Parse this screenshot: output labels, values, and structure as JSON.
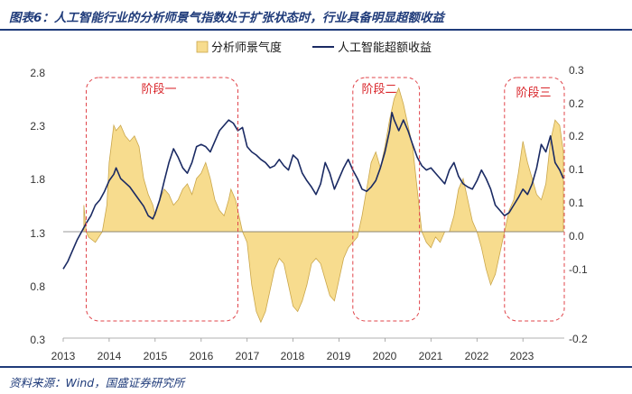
{
  "title": "图表6：人工智能行业的分析师景气指数处于扩张状态时，行业具备明显超额收益",
  "source": "资料来源：Wind，国盛证券研究所",
  "colors": {
    "bar_fill": "#f7dc8e",
    "bar_stroke": "#caa64a",
    "line": "#1a2a63",
    "phase": "#e0444a"
  },
  "chart_data": {
    "type": "area+line",
    "title": "人工智能行业的分析师景气指数处于扩张状态时，行业具备明显超额收益",
    "x_labels": [
      "2013",
      "2014",
      "2015",
      "2016",
      "2017",
      "2018",
      "2019",
      "2020",
      "2021",
      "2022",
      "2023"
    ],
    "x_range": [
      2013.0,
      2023.9
    ],
    "left_axis": {
      "name": "人工智能超额收益",
      "ylim": [
        0.3,
        2.8
      ],
      "ticks": [
        "0.3",
        "0.8",
        "1.3",
        "1.8",
        "2.3",
        "2.8"
      ]
    },
    "right_axis": {
      "name": "分析师景气度",
      "ylim": [
        -0.2,
        0.3
      ],
      "ticks": [
        "-0.2",
        "-0.1",
        "0.0",
        "0.1",
        "0.1",
        "0.2",
        "0.2",
        "0.3"
      ]
    },
    "legend": [
      "分析师景气度",
      "人工智能超额收益"
    ],
    "series": [
      {
        "name": "分析师景气度",
        "axis": "right",
        "kind": "area",
        "points": [
          [
            2013.45,
            0.05
          ],
          [
            2013.5,
            0.0
          ],
          [
            2013.55,
            -0.01
          ],
          [
            2013.7,
            -0.02
          ],
          [
            2013.85,
            0.0
          ],
          [
            2013.95,
            0.05
          ],
          [
            2014.0,
            0.13
          ],
          [
            2014.1,
            0.2
          ],
          [
            2014.15,
            0.19
          ],
          [
            2014.25,
            0.2
          ],
          [
            2014.35,
            0.18
          ],
          [
            2014.45,
            0.17
          ],
          [
            2014.55,
            0.18
          ],
          [
            2014.65,
            0.16
          ],
          [
            2014.75,
            0.1
          ],
          [
            2014.85,
            0.07
          ],
          [
            2014.95,
            0.05
          ],
          [
            2015.0,
            0.03
          ],
          [
            2015.1,
            0.06
          ],
          [
            2015.2,
            0.08
          ],
          [
            2015.3,
            0.07
          ],
          [
            2015.4,
            0.05
          ],
          [
            2015.5,
            0.06
          ],
          [
            2015.6,
            0.08
          ],
          [
            2015.7,
            0.09
          ],
          [
            2015.8,
            0.07
          ],
          [
            2015.9,
            0.1
          ],
          [
            2016.0,
            0.11
          ],
          [
            2016.1,
            0.13
          ],
          [
            2016.2,
            0.1
          ],
          [
            2016.3,
            0.06
          ],
          [
            2016.4,
            0.04
          ],
          [
            2016.5,
            0.03
          ],
          [
            2016.6,
            0.06
          ],
          [
            2016.65,
            0.08
          ],
          [
            2016.75,
            0.06
          ],
          [
            2016.85,
            0.02
          ],
          [
            2016.9,
            0.0
          ],
          [
            2017.0,
            -0.02
          ],
          [
            2017.1,
            -0.1
          ],
          [
            2017.2,
            -0.15
          ],
          [
            2017.3,
            -0.17
          ],
          [
            2017.4,
            -0.15
          ],
          [
            2017.5,
            -0.11
          ],
          [
            2017.6,
            -0.07
          ],
          [
            2017.7,
            -0.05
          ],
          [
            2017.8,
            -0.06
          ],
          [
            2017.9,
            -0.1
          ],
          [
            2018.0,
            -0.14
          ],
          [
            2018.1,
            -0.15
          ],
          [
            2018.2,
            -0.13
          ],
          [
            2018.3,
            -0.1
          ],
          [
            2018.4,
            -0.06
          ],
          [
            2018.5,
            -0.05
          ],
          [
            2018.6,
            -0.06
          ],
          [
            2018.7,
            -0.09
          ],
          [
            2018.8,
            -0.12
          ],
          [
            2018.9,
            -0.13
          ],
          [
            2019.0,
            -0.09
          ],
          [
            2019.1,
            -0.05
          ],
          [
            2019.2,
            -0.03
          ],
          [
            2019.3,
            -0.02
          ],
          [
            2019.4,
            -0.01
          ],
          [
            2019.5,
            0.03
          ],
          [
            2019.6,
            0.08
          ],
          [
            2019.7,
            0.13
          ],
          [
            2019.8,
            0.15
          ],
          [
            2019.9,
            0.12
          ],
          [
            2020.0,
            0.16
          ],
          [
            2020.1,
            0.21
          ],
          [
            2020.2,
            0.25
          ],
          [
            2020.3,
            0.27
          ],
          [
            2020.4,
            0.24
          ],
          [
            2020.5,
            0.2
          ],
          [
            2020.6,
            0.16
          ],
          [
            2020.7,
            0.08
          ],
          [
            2020.75,
            0.04
          ],
          [
            2020.8,
            0.0
          ],
          [
            2020.9,
            -0.02
          ],
          [
            2021.0,
            -0.03
          ],
          [
            2021.1,
            -0.01
          ],
          [
            2021.2,
            -0.02
          ],
          [
            2021.3,
            0.0
          ],
          [
            2021.4,
            0.0
          ],
          [
            2021.5,
            0.03
          ],
          [
            2021.6,
            0.08
          ],
          [
            2021.7,
            0.1
          ],
          [
            2021.8,
            0.06
          ],
          [
            2021.9,
            0.02
          ],
          [
            2022.0,
            0.0
          ],
          [
            2022.1,
            -0.03
          ],
          [
            2022.2,
            -0.07
          ],
          [
            2022.3,
            -0.1
          ],
          [
            2022.4,
            -0.08
          ],
          [
            2022.5,
            -0.04
          ],
          [
            2022.6,
            0.0
          ],
          [
            2022.7,
            0.04
          ],
          [
            2022.8,
            0.06
          ],
          [
            2022.9,
            0.11
          ],
          [
            2023.0,
            0.17
          ],
          [
            2023.1,
            0.13
          ],
          [
            2023.2,
            0.1
          ],
          [
            2023.3,
            0.07
          ],
          [
            2023.4,
            0.06
          ],
          [
            2023.5,
            0.09
          ],
          [
            2023.6,
            0.17
          ],
          [
            2023.7,
            0.21
          ],
          [
            2023.8,
            0.2
          ],
          [
            2023.88,
            0.15
          ]
        ]
      },
      {
        "name": "人工智能超额收益",
        "axis": "left",
        "kind": "line",
        "points": [
          [
            2013.0,
            0.95
          ],
          [
            2013.1,
            1.02
          ],
          [
            2013.2,
            1.12
          ],
          [
            2013.3,
            1.22
          ],
          [
            2013.4,
            1.3
          ],
          [
            2013.5,
            1.38
          ],
          [
            2013.6,
            1.45
          ],
          [
            2013.7,
            1.55
          ],
          [
            2013.8,
            1.6
          ],
          [
            2013.9,
            1.68
          ],
          [
            2014.0,
            1.78
          ],
          [
            2014.1,
            1.84
          ],
          [
            2014.15,
            1.9
          ],
          [
            2014.25,
            1.8
          ],
          [
            2014.35,
            1.76
          ],
          [
            2014.45,
            1.72
          ],
          [
            2014.55,
            1.66
          ],
          [
            2014.65,
            1.6
          ],
          [
            2014.75,
            1.54
          ],
          [
            2014.85,
            1.45
          ],
          [
            2014.95,
            1.42
          ],
          [
            2015.0,
            1.47
          ],
          [
            2015.1,
            1.6
          ],
          [
            2015.2,
            1.78
          ],
          [
            2015.3,
            1.95
          ],
          [
            2015.4,
            2.08
          ],
          [
            2015.5,
            2.0
          ],
          [
            2015.6,
            1.9
          ],
          [
            2015.7,
            1.85
          ],
          [
            2015.8,
            1.95
          ],
          [
            2015.9,
            2.1
          ],
          [
            2016.0,
            2.12
          ],
          [
            2016.1,
            2.1
          ],
          [
            2016.2,
            2.05
          ],
          [
            2016.3,
            2.15
          ],
          [
            2016.4,
            2.25
          ],
          [
            2016.5,
            2.3
          ],
          [
            2016.6,
            2.35
          ],
          [
            2016.7,
            2.32
          ],
          [
            2016.8,
            2.25
          ],
          [
            2016.9,
            2.28
          ],
          [
            2017.0,
            2.1
          ],
          [
            2017.1,
            2.05
          ],
          [
            2017.2,
            2.02
          ],
          [
            2017.3,
            1.98
          ],
          [
            2017.4,
            1.95
          ],
          [
            2017.5,
            1.9
          ],
          [
            2017.6,
            1.92
          ],
          [
            2017.7,
            1.98
          ],
          [
            2017.8,
            1.92
          ],
          [
            2017.9,
            1.88
          ],
          [
            2018.0,
            2.02
          ],
          [
            2018.1,
            1.98
          ],
          [
            2018.2,
            1.85
          ],
          [
            2018.3,
            1.78
          ],
          [
            2018.4,
            1.72
          ],
          [
            2018.5,
            1.65
          ],
          [
            2018.6,
            1.75
          ],
          [
            2018.7,
            1.95
          ],
          [
            2018.8,
            1.85
          ],
          [
            2018.9,
            1.7
          ],
          [
            2019.0,
            1.8
          ],
          [
            2019.1,
            1.9
          ],
          [
            2019.2,
            1.98
          ],
          [
            2019.3,
            1.88
          ],
          [
            2019.4,
            1.8
          ],
          [
            2019.5,
            1.7
          ],
          [
            2019.6,
            1.68
          ],
          [
            2019.7,
            1.72
          ],
          [
            2019.8,
            1.78
          ],
          [
            2019.9,
            1.9
          ],
          [
            2020.0,
            2.05
          ],
          [
            2020.1,
            2.25
          ],
          [
            2020.15,
            2.42
          ],
          [
            2020.2,
            2.35
          ],
          [
            2020.3,
            2.25
          ],
          [
            2020.4,
            2.35
          ],
          [
            2020.5,
            2.25
          ],
          [
            2020.6,
            2.12
          ],
          [
            2020.7,
            2.0
          ],
          [
            2020.8,
            1.92
          ],
          [
            2020.9,
            1.88
          ],
          [
            2021.0,
            1.9
          ],
          [
            2021.1,
            1.85
          ],
          [
            2021.2,
            1.8
          ],
          [
            2021.3,
            1.75
          ],
          [
            2021.4,
            1.88
          ],
          [
            2021.5,
            1.95
          ],
          [
            2021.6,
            1.82
          ],
          [
            2021.7,
            1.75
          ],
          [
            2021.8,
            1.72
          ],
          [
            2021.9,
            1.7
          ],
          [
            2022.0,
            1.78
          ],
          [
            2022.1,
            1.88
          ],
          [
            2022.2,
            1.8
          ],
          [
            2022.3,
            1.7
          ],
          [
            2022.4,
            1.55
          ],
          [
            2022.5,
            1.5
          ],
          [
            2022.6,
            1.45
          ],
          [
            2022.7,
            1.48
          ],
          [
            2022.8,
            1.55
          ],
          [
            2022.9,
            1.62
          ],
          [
            2023.0,
            1.7
          ],
          [
            2023.1,
            1.65
          ],
          [
            2023.2,
            1.75
          ],
          [
            2023.3,
            1.9
          ],
          [
            2023.4,
            2.12
          ],
          [
            2023.5,
            2.05
          ],
          [
            2023.6,
            2.2
          ],
          [
            2023.7,
            1.95
          ],
          [
            2023.8,
            1.88
          ],
          [
            2023.88,
            1.8
          ]
        ]
      }
    ],
    "phases": [
      {
        "label": "阶段一",
        "x_from": 2013.5,
        "x_to": 2016.8
      },
      {
        "label": "阶段二",
        "x_from": 2019.3,
        "x_to": 2020.75
      },
      {
        "label": "阶段三",
        "x_from": 2022.6,
        "x_to": 2023.9
      }
    ]
  }
}
